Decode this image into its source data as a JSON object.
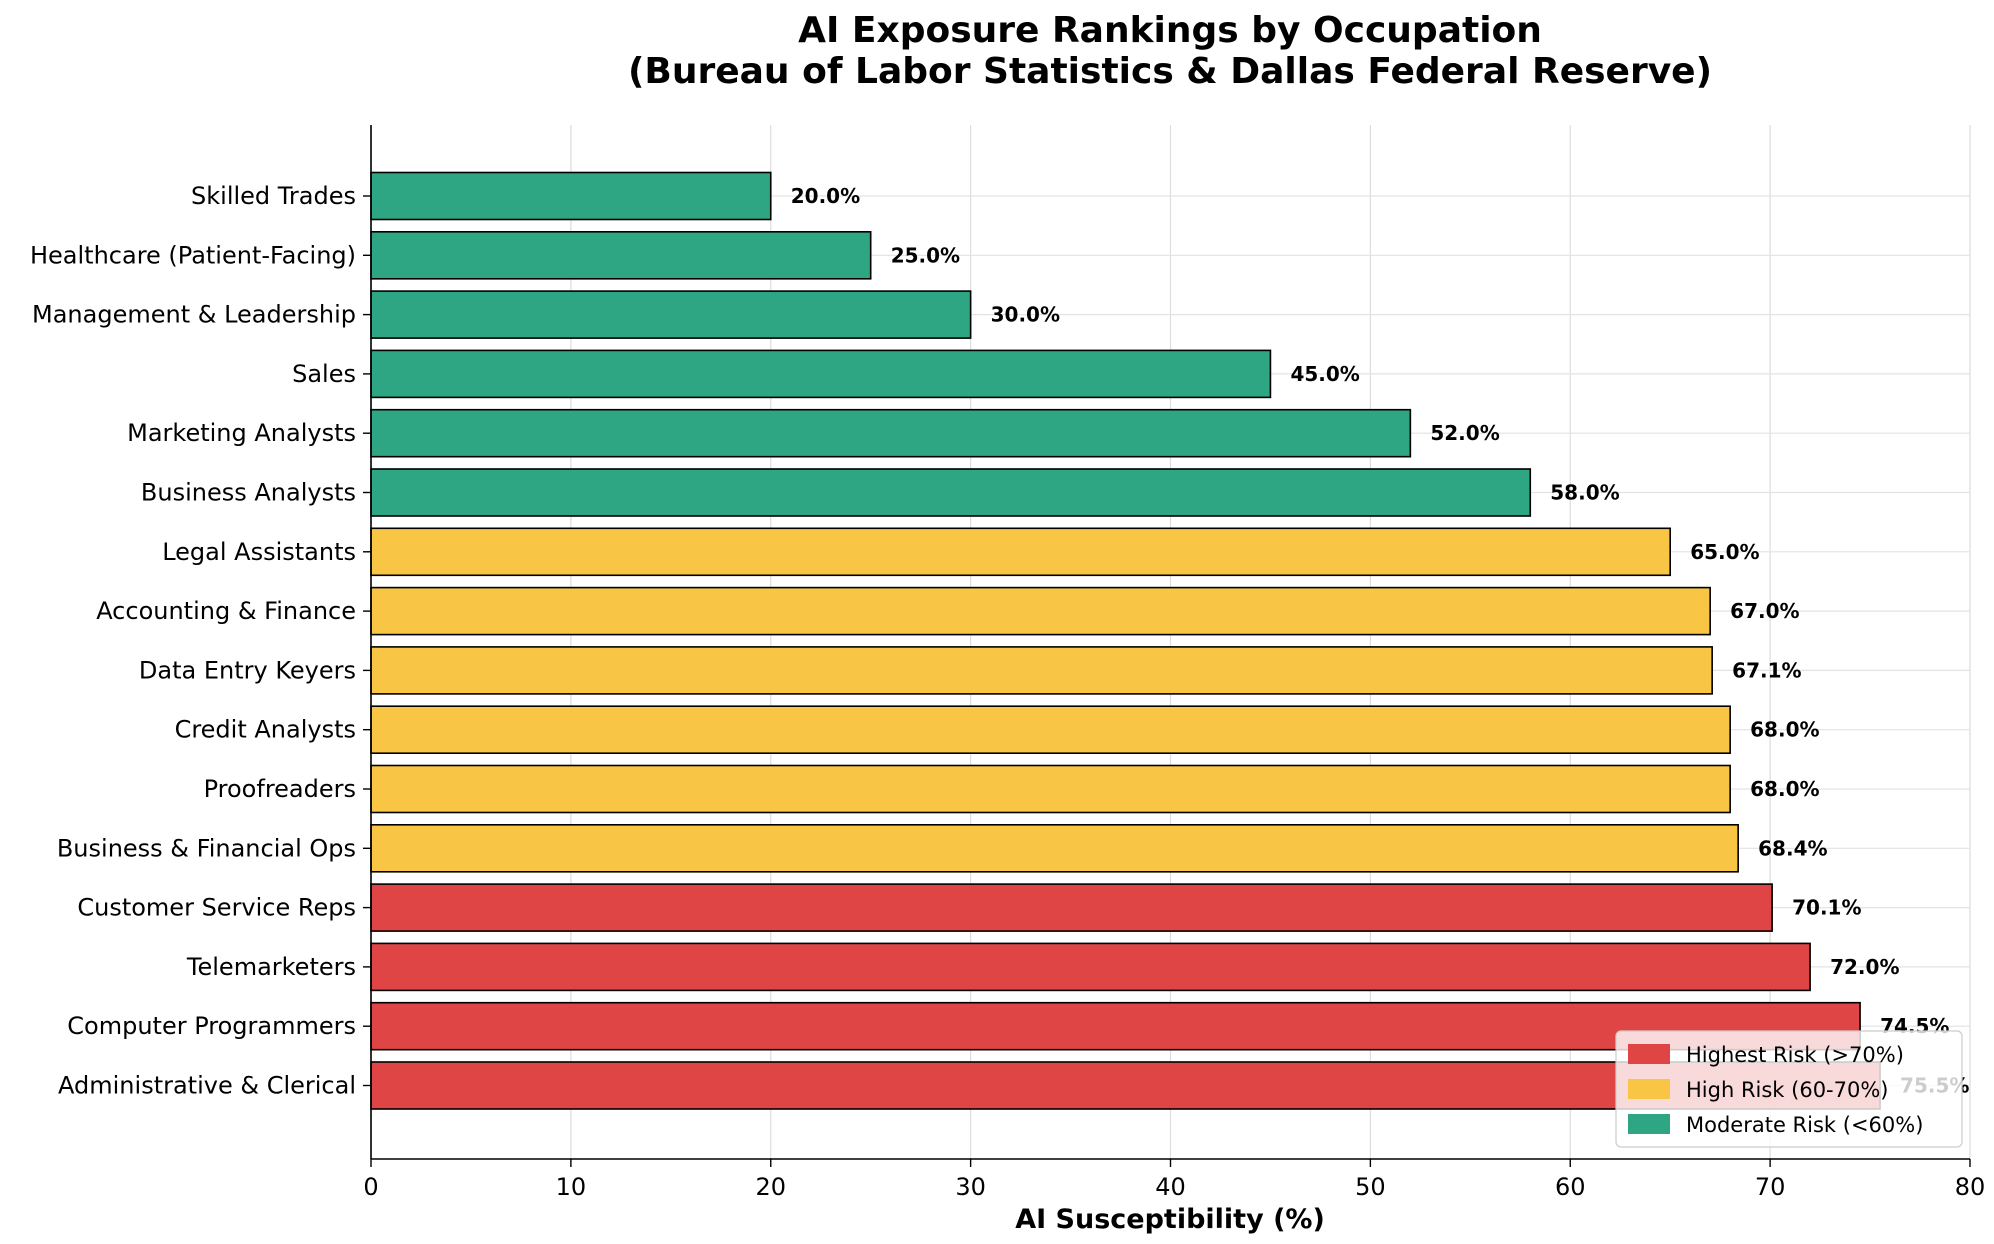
{
  "chart_data": {
    "type": "bar",
    "orientation": "horizontal",
    "title_lines": [
      "AI Exposure Rankings by Occupation",
      "(Bureau of Labor Statistics & Dallas Federal Reserve)"
    ],
    "xlabel": "AI Susceptibility (%)",
    "ylabel": "",
    "xlim": [
      0,
      80
    ],
    "xticks": [
      0,
      10,
      20,
      30,
      40,
      50,
      60,
      70,
      80
    ],
    "grid": true,
    "legend_position": "bottom-right",
    "categories": [
      "Administrative & Clerical",
      "Computer Programmers",
      "Telemarketers",
      "Customer Service Reps",
      "Business & Financial Ops",
      "Proofreaders",
      "Credit Analysts",
      "Data Entry Keyers",
      "Accounting & Finance",
      "Legal Assistants",
      "Business Analysts",
      "Marketing Analysts",
      "Sales",
      "Management & Leadership",
      "Healthcare (Patient-Facing)",
      "Skilled Trades"
    ],
    "values": [
      75.5,
      74.5,
      72.0,
      70.1,
      68.4,
      68.0,
      68.0,
      67.1,
      67.0,
      65.0,
      58.0,
      52.0,
      45.0,
      30.0,
      25.0,
      20.0
    ],
    "value_labels": [
      "75.5%",
      "74.5%",
      "72.0%",
      "70.1%",
      "68.4%",
      "68.0%",
      "68.0%",
      "67.1%",
      "67.0%",
      "65.0%",
      "58.0%",
      "52.0%",
      "45.0%",
      "30.0%",
      "25.0%",
      "20.0%"
    ],
    "risk_groups": [
      "highest",
      "highest",
      "highest",
      "highest",
      "high",
      "high",
      "high",
      "high",
      "high",
      "high",
      "moderate",
      "moderate",
      "moderate",
      "moderate",
      "moderate",
      "moderate"
    ],
    "legend": [
      {
        "key": "highest",
        "label": "Highest Risk (>70%)",
        "color": "#e04545"
      },
      {
        "key": "high",
        "label": "High Risk (60-70%)",
        "color": "#f8c545"
      },
      {
        "key": "moderate",
        "label": "Moderate Risk (<60%)",
        "color": "#2ea583"
      }
    ]
  }
}
